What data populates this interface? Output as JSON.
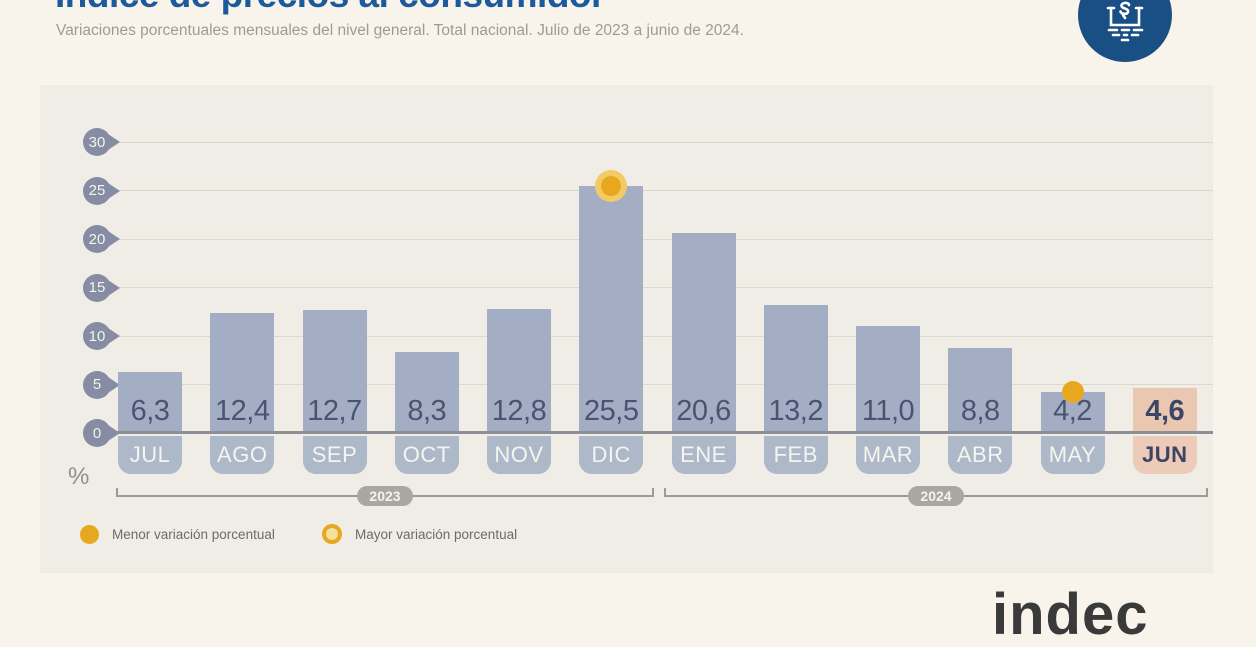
{
  "page": {
    "title": "Índice de precios al consumidor",
    "subtitle": "Variaciones porcentuales mensuales del nivel general. Total nacional. Julio de 2023 a junio de 2024.",
    "unit_label": "%",
    "source_logo": "indec"
  },
  "colors": {
    "title_blue": "#1c5a9b",
    "badge_blue": "#1a4f85",
    "bar": "#a3aec4",
    "month_tab": "#adb8c9",
    "highlight_bar": "#eac7b1",
    "highlight_tab": "#ecccb8",
    "value_text": "#4a5470",
    "highlight_text": "#3c4566",
    "gold": "#e7a81f",
    "gold_light": "#f2cb66",
    "tick_pin": "#868ca3",
    "panel_bg": "#f0ede6",
    "page_bg": "#f8f4ec"
  },
  "chart_data": {
    "type": "bar",
    "title": "Índice de precios al consumidor",
    "subtitle": "Variaciones porcentuales mensuales del nivel general. Total nacional. Julio de 2023 a junio de 2024.",
    "xlabel": "",
    "ylabel": "%",
    "ylim": [
      0,
      30
    ],
    "yticks": [
      30,
      25,
      20,
      15,
      10,
      5,
      0
    ],
    "grid": true,
    "categories": [
      "JUL",
      "AGO",
      "SEP",
      "OCT",
      "NOV",
      "DIC",
      "ENE",
      "FEB",
      "MAR",
      "ABR",
      "MAY",
      "JUN"
    ],
    "values": [
      6.3,
      12.4,
      12.7,
      8.3,
      12.8,
      25.5,
      20.6,
      13.2,
      11.0,
      8.8,
      4.2,
      4.6
    ],
    "value_labels": [
      "6,3",
      "12,4",
      "12,7",
      "8,3",
      "12,8",
      "25,5",
      "20,6",
      "13,2",
      "11,0",
      "8,8",
      "4,2",
      "4,6"
    ],
    "highlight_month": "JUN",
    "highlight_index": 11,
    "min_marker": {
      "month": "MAY",
      "index": 10,
      "value": 4.2,
      "style": "solid-dot"
    },
    "max_marker": {
      "month": "DIC",
      "index": 5,
      "value": 25.5,
      "style": "ring-dot"
    },
    "year_groups": [
      {
        "label": "2023",
        "start_index": 0,
        "end_index": 5
      },
      {
        "label": "2024",
        "start_index": 6,
        "end_index": 11
      }
    ],
    "legend": [
      {
        "label": "Menor variación porcentual",
        "marker": "solid-dot"
      },
      {
        "label": "Mayor variación porcentual",
        "marker": "ring-dot"
      }
    ],
    "legend_position": "bottom-left"
  }
}
